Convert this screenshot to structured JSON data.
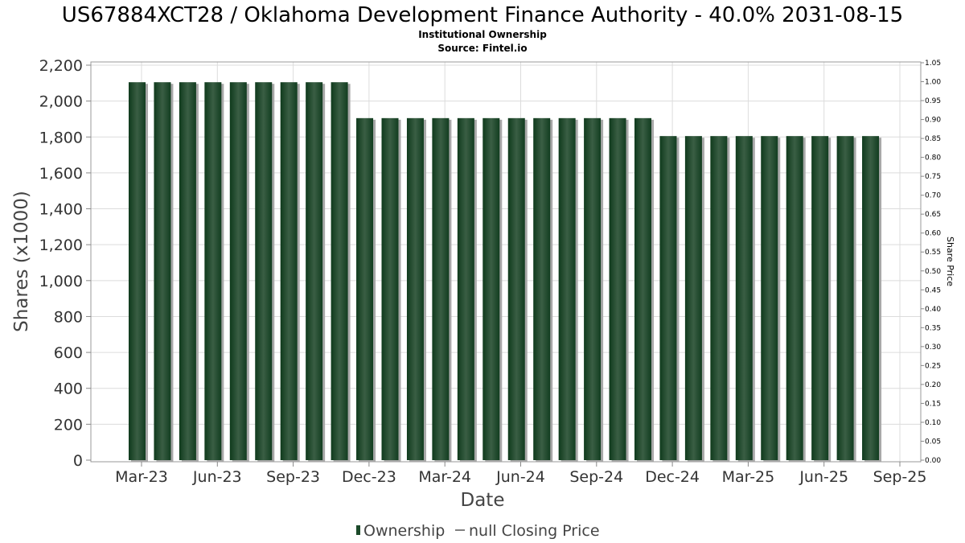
{
  "chart_data": {
    "type": "bar",
    "title": "US67884XCT28 / Oklahoma Development Finance Authority - 40.0% 2031-08-15",
    "subtitle_lines": [
      "Institutional Ownership",
      "Source: Fintel.io"
    ],
    "xlabel": "Date",
    "ylabel": "Shares (x1000)",
    "y2label": "Share Price",
    "ylim": [
      0,
      2200
    ],
    "y_ticks": [
      0,
      200,
      400,
      600,
      800,
      1000,
      1200,
      1400,
      1600,
      1800,
      2000,
      2200
    ],
    "y_tick_labels": [
      "0",
      "200",
      "400",
      "600",
      "800",
      "1,000",
      "1,200",
      "1,400",
      "1,600",
      "1,800",
      "2,000",
      "2,200"
    ],
    "y2lim": [
      0,
      1.05
    ],
    "y2_tick_labels": [
      "0.00",
      "0.05",
      "0.10",
      "0.15",
      "0.20",
      "0.25",
      "0.30",
      "0.35",
      "0.40",
      "0.45",
      "0.50",
      "0.55",
      "0.60",
      "0.65",
      "0.70",
      "0.75",
      "0.80",
      "0.85",
      "0.90",
      "0.95",
      "1.00",
      "1.05"
    ],
    "x_tick_labels": [
      "Mar-23",
      "Jun-23",
      "Sep-23",
      "Dec-23",
      "Mar-24",
      "Jun-24",
      "Sep-24",
      "Dec-24",
      "Mar-25",
      "Jun-25",
      "Sep-25"
    ],
    "grid": true,
    "legend_position": "bottom",
    "series": [
      {
        "name": "Ownership",
        "color": "#1c4a2a",
        "values": [
          2105,
          2105,
          2105,
          2105,
          2105,
          2105,
          2105,
          2105,
          2105,
          1905,
          1905,
          1905,
          1905,
          1905,
          1905,
          1905,
          1905,
          1905,
          1905,
          1905,
          1905,
          1805,
          1805,
          1805,
          1805,
          1805,
          1805,
          1805,
          1805,
          1805
        ]
      },
      {
        "name": "null Closing Price",
        "color": "#555555",
        "values": []
      }
    ]
  }
}
